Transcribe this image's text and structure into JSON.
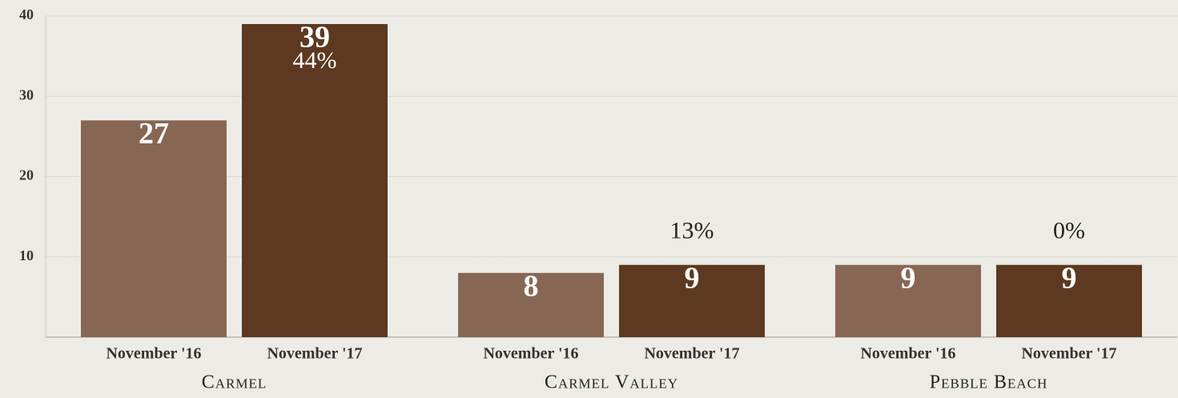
{
  "chart_data": {
    "type": "bar",
    "categories": [
      "Carmel",
      "Carmel Valley",
      "Pebble Beach"
    ],
    "series": [
      {
        "name": "November '16",
        "color": "#876753",
        "values": [
          27,
          8,
          9
        ]
      },
      {
        "name": "November '17",
        "color": "#5c3920",
        "values": [
          39,
          9,
          9
        ]
      }
    ],
    "change_labels": [
      "44%",
      "13%",
      "0%"
    ],
    "ylim": [
      0,
      40
    ],
    "yticks": [
      10,
      20,
      30,
      40
    ],
    "grid": true
  }
}
